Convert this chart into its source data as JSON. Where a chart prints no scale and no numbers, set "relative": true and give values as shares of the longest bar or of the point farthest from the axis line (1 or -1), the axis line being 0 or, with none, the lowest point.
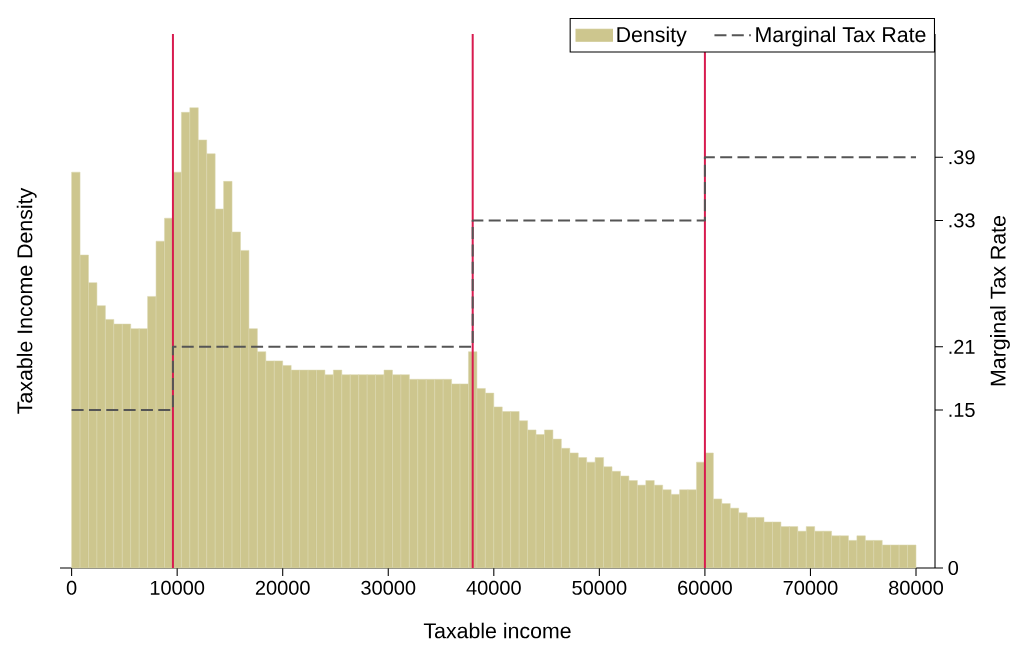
{
  "chart_data": {
    "type": "bar",
    "relative": true,
    "xlabel": "Taxable income",
    "ylabel": "Taxable Income Density",
    "y2label": "Marginal Tax Rate",
    "legend": "top right",
    "xlim": [
      -1100,
      81800
    ],
    "xticks": [
      0,
      10000,
      20000,
      30000,
      40000,
      50000,
      60000,
      70000,
      80000
    ],
    "y2lim": [
      0,
      0.507
    ],
    "y2ticks": [
      0,
      {
        "value": 0.15,
        "label": ".15"
      },
      {
        "value": 0.21,
        "label": ".21"
      },
      {
        "value": 0.33,
        "label": ".33"
      },
      {
        "value": 0.39,
        "label": ".39"
      }
    ],
    "series": [
      {
        "name": "Density",
        "color": "#cdc68e",
        "x": [
          400,
          1200,
          2000,
          2800,
          3600,
          4400,
          5200,
          6000,
          6800,
          7600,
          8400,
          9200,
          10000,
          10800,
          11600,
          12400,
          13200,
          14000,
          14800,
          15600,
          16400,
          17200,
          18000,
          18800,
          19600,
          20400,
          21200,
          22000,
          22800,
          23600,
          24400,
          25200,
          26000,
          26800,
          27600,
          28400,
          29200,
          30000,
          30800,
          31600,
          32400,
          33200,
          34000,
          34800,
          35600,
          36400,
          37200,
          38000,
          38800,
          39600,
          40400,
          41200,
          42000,
          42800,
          43600,
          44400,
          45200,
          46000,
          46800,
          47600,
          48400,
          49200,
          50000,
          50800,
          51600,
          52400,
          53200,
          54000,
          54800,
          55600,
          56400,
          57200,
          58000,
          58800,
          59600,
          60400,
          61200,
          62000,
          62800,
          63600,
          64400,
          65200,
          66000,
          66800,
          67600,
          68400,
          69200,
          70000,
          70800,
          71600,
          72400,
          73200,
          74000,
          74800,
          75600,
          76400,
          77200,
          78000,
          78800,
          79600
        ],
        "values": [
          0.86,
          0.68,
          0.62,
          0.57,
          0.54,
          0.53,
          0.53,
          0.52,
          0.52,
          0.59,
          0.71,
          0.76,
          0.86,
          0.99,
          1,
          0.93,
          0.9,
          0.78,
          0.84,
          0.73,
          0.69,
          0.52,
          0.47,
          0.45,
          0.45,
          0.44,
          0.43,
          0.43,
          0.43,
          0.43,
          0.42,
          0.43,
          0.42,
          0.42,
          0.42,
          0.42,
          0.42,
          0.43,
          0.42,
          0.42,
          0.41,
          0.41,
          0.41,
          0.41,
          0.41,
          0.4,
          0.4,
          0.47,
          0.39,
          0.38,
          0.35,
          0.34,
          0.34,
          0.32,
          0.3,
          0.29,
          0.3,
          0.28,
          0.26,
          0.25,
          0.24,
          0.23,
          0.24,
          0.22,
          0.21,
          0.2,
          0.19,
          0.18,
          0.19,
          0.18,
          0.17,
          0.16,
          0.17,
          0.17,
          0.23,
          0.25,
          0.15,
          0.14,
          0.13,
          0.12,
          0.11,
          0.11,
          0.1,
          0.1,
          0.09,
          0.09,
          0.08,
          0.09,
          0.08,
          0.08,
          0.07,
          0.07,
          0.06,
          0.07,
          0.06,
          0.06,
          0.05,
          0.05,
          0.05,
          0.05
        ]
      },
      {
        "type": "step",
        "name": "Marginal Tax Rate",
        "color": "#555555",
        "axis": "y2",
        "line_style": "dashed",
        "x": [
          0,
          9600,
          38000,
          60000,
          80000
        ],
        "values": [
          0.15,
          0.21,
          0.33,
          0.39,
          0.39
        ]
      }
    ],
    "ref_lines": [
      {
        "axis": "x",
        "value": 9600,
        "color": "#d81b4f"
      },
      {
        "axis": "x",
        "value": 38000,
        "color": "#d81b4f"
      },
      {
        "axis": "x",
        "value": 60000,
        "color": "#d81b4f"
      }
    ]
  }
}
